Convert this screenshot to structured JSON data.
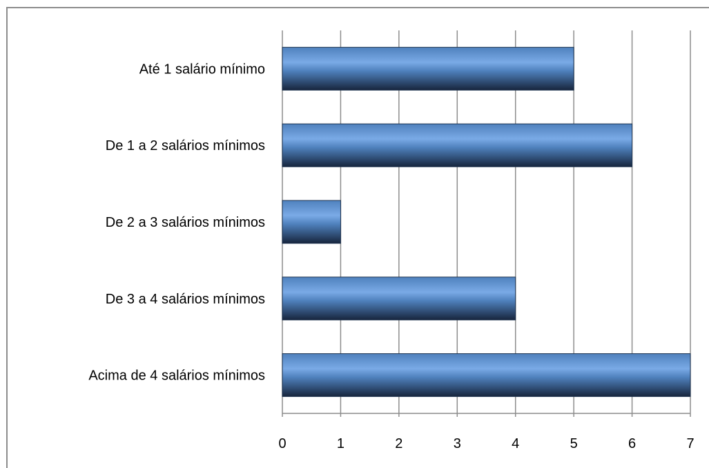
{
  "chart_data": {
    "type": "bar",
    "orientation": "horizontal",
    "categories": [
      "Até 1 salário mínimo",
      "De 1 a 2 salários mínimos",
      "De 2 a 3 salários mínimos",
      "De 3 a 4 salários mínimos",
      "Acima de 4 salários mínimos"
    ],
    "values": [
      5,
      6,
      1,
      4,
      7
    ],
    "xlim": [
      0,
      7
    ],
    "ticks": [
      "0",
      "1",
      "2",
      "3",
      "4",
      "5",
      "6",
      "7"
    ],
    "grid": true,
    "legend": "none",
    "title": "",
    "xlabel": "",
    "ylabel": "",
    "colors": {
      "bar_light": "#7aaae6",
      "bar_mid": "#4f81bd",
      "bar_dark": "#17253d",
      "grid": "#8c8c8c",
      "frame": "#8c8c8c"
    }
  }
}
